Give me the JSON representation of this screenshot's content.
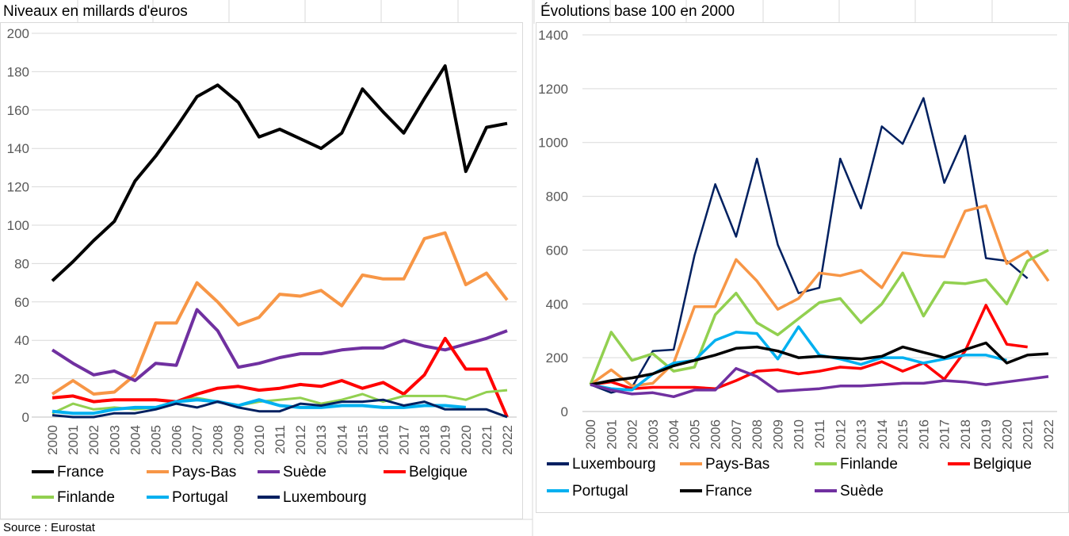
{
  "source": "Source : Eurostat",
  "chart_data": [
    {
      "type": "line",
      "title": "Niveaux en millards d'euros",
      "ylim": [
        0,
        200
      ],
      "yticks": [
        0,
        20,
        40,
        60,
        80,
        100,
        120,
        140,
        160,
        180,
        200
      ],
      "grid": true,
      "legend": "bottom",
      "categories": [
        "2000",
        "2001",
        "2002",
        "2003",
        "2004",
        "2005",
        "2006",
        "2007",
        "2008",
        "2009",
        "2010",
        "2011",
        "2012",
        "2013",
        "2014",
        "2015",
        "2016",
        "2017",
        "2018",
        "2019",
        "2020",
        "2021",
        "2022"
      ],
      "series": [
        {
          "name": "France",
          "color": "#000000",
          "values": [
            71,
            81,
            92,
            102,
            123,
            136,
            151,
            167,
            173,
            164,
            146,
            150,
            145,
            140,
            148,
            171,
            159,
            148,
            166,
            183,
            128,
            151,
            153
          ]
        },
        {
          "name": "Pays-Bas",
          "color": "#F79646",
          "values": [
            12,
            19,
            12,
            13,
            22,
            49,
            49,
            70,
            60,
            48,
            52,
            64,
            63,
            66,
            58,
            74,
            72,
            72,
            93,
            96,
            69,
            75,
            61
          ]
        },
        {
          "name": "Suède",
          "color": "#7030A0",
          "values": [
            35,
            28,
            22,
            24,
            19,
            28,
            27,
            56,
            45,
            26,
            28,
            31,
            33,
            33,
            35,
            36,
            36,
            40,
            37,
            35,
            38,
            41,
            45
          ]
        },
        {
          "name": "Belgique",
          "color": "#FF0000",
          "values": [
            10,
            11,
            8,
            9,
            9,
            9,
            8,
            12,
            15,
            16,
            14,
            15,
            17,
            16,
            19,
            15,
            18,
            12,
            22,
            41,
            25,
            25,
            0
          ]
        },
        {
          "name": "Finlande",
          "color": "#92D050",
          "values": [
            2,
            7,
            4,
            5,
            4,
            5,
            8,
            10,
            8,
            6,
            8,
            9,
            10,
            7,
            9,
            12,
            8,
            11,
            11,
            11,
            9,
            13,
            14
          ]
        },
        {
          "name": "Portugal",
          "color": "#00B0F0",
          "values": [
            3,
            2,
            2,
            4,
            5,
            5,
            8,
            9,
            8,
            6,
            9,
            6,
            5,
            5,
            6,
            6,
            5,
            5,
            6,
            6,
            5,
            null,
            null
          ]
        },
        {
          "name": "Luxembourg",
          "color": "#002060",
          "values": [
            1,
            0,
            0,
            2,
            2,
            4,
            7,
            5,
            8,
            5,
            3,
            3,
            7,
            6,
            8,
            8,
            9,
            6,
            8,
            4,
            4,
            4,
            0
          ]
        }
      ]
    },
    {
      "type": "line",
      "title": "Évolutions base 100 en 2000",
      "ylim": [
        0,
        1400
      ],
      "yticks": [
        0,
        200,
        400,
        600,
        800,
        1000,
        1200,
        1400
      ],
      "grid": true,
      "legend": "bottom",
      "categories": [
        "2000",
        "2001",
        "2002",
        "2003",
        "2004",
        "2005",
        "2006",
        "2007",
        "2008",
        "2009",
        "2010",
        "2011",
        "2012",
        "2013",
        "2014",
        "2015",
        "2016",
        "2017",
        "2018",
        "2019",
        "2020",
        "2021",
        "2022"
      ],
      "series": [
        {
          "name": "Luxembourg",
          "color": "#002060",
          "values": [
            100,
            70,
            90,
            225,
            230,
            580,
            845,
            650,
            940,
            620,
            440,
            460,
            940,
            755,
            1060,
            995,
            1165,
            850,
            1025,
            570,
            560,
            495,
            null
          ]
        },
        {
          "name": "Pays-Bas",
          "color": "#F79646",
          "values": [
            100,
            155,
            95,
            105,
            180,
            390,
            390,
            565,
            485,
            380,
            420,
            515,
            505,
            525,
            460,
            590,
            580,
            575,
            745,
            765,
            550,
            595,
            485
          ]
        },
        {
          "name": "Finlande",
          "color": "#92D050",
          "values": [
            100,
            295,
            190,
            215,
            150,
            165,
            360,
            440,
            330,
            285,
            345,
            405,
            420,
            330,
            400,
            515,
            355,
            480,
            475,
            490,
            400,
            560,
            600
          ]
        },
        {
          "name": "Belgique",
          "color": "#FF0000",
          "values": [
            100,
            110,
            85,
            90,
            90,
            90,
            85,
            115,
            150,
            155,
            140,
            150,
            165,
            160,
            185,
            150,
            180,
            120,
            225,
            395,
            250,
            240,
            null
          ]
        },
        {
          "name": "Portugal",
          "color": "#00B0F0",
          "values": [
            100,
            85,
            80,
            140,
            180,
            190,
            265,
            295,
            290,
            195,
            315,
            210,
            195,
            175,
            200,
            200,
            180,
            195,
            210,
            210,
            190,
            null,
            null
          ]
        },
        {
          "name": "France",
          "color": "#000000",
          "values": [
            100,
            115,
            125,
            140,
            170,
            190,
            210,
            235,
            240,
            225,
            200,
            205,
            200,
            195,
            205,
            240,
            220,
            200,
            230,
            255,
            180,
            210,
            215
          ]
        },
        {
          "name": "Suède",
          "color": "#7030A0",
          "values": [
            100,
            80,
            65,
            70,
            55,
            80,
            80,
            160,
            130,
            75,
            80,
            85,
            95,
            95,
            100,
            105,
            105,
            115,
            110,
            100,
            110,
            120,
            130
          ]
        }
      ]
    }
  ]
}
